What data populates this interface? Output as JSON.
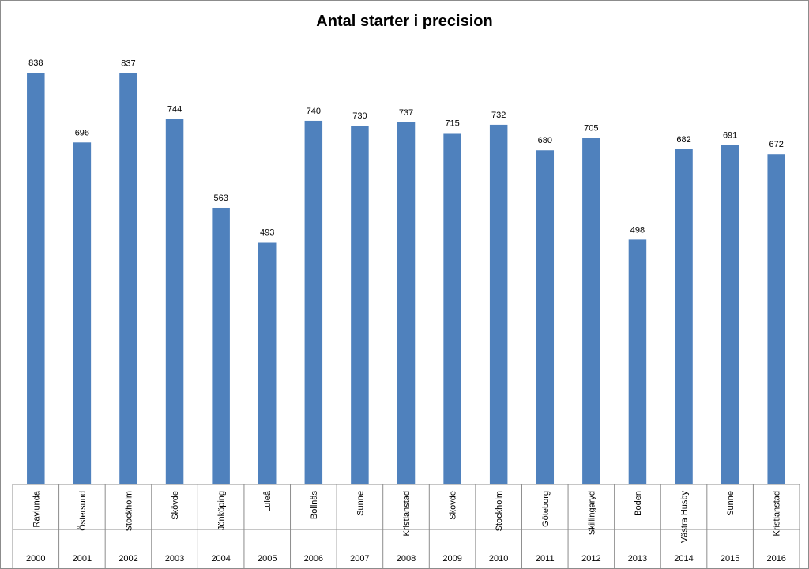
{
  "chart_data": {
    "type": "bar",
    "title": "Antal starter i precision",
    "xlabel": "",
    "ylabel": "",
    "ylim": [
      0,
      900
    ],
    "grid": false,
    "legend": "none",
    "bar_color": "#4f81bd",
    "categories": [
      {
        "year": "2000",
        "city": "Ravlunda"
      },
      {
        "year": "2001",
        "city": "Östersund"
      },
      {
        "year": "2002",
        "city": "Stockholm"
      },
      {
        "year": "2003",
        "city": "Skövde"
      },
      {
        "year": "2004",
        "city": "Jönköping"
      },
      {
        "year": "2005",
        "city": "Luleå"
      },
      {
        "year": "2006",
        "city": "Bollnäs"
      },
      {
        "year": "2007",
        "city": "Sunne"
      },
      {
        "year": "2008",
        "city": "Kristianstad"
      },
      {
        "year": "2009",
        "city": "Skövde"
      },
      {
        "year": "2010",
        "city": "Stockholm"
      },
      {
        "year": "2011",
        "city": "Göteborg"
      },
      {
        "year": "2012",
        "city": "Skillingaryd"
      },
      {
        "year": "2013",
        "city": "Boden"
      },
      {
        "year": "2014",
        "city": "Västra Husby"
      },
      {
        "year": "2015",
        "city": "Sunne"
      },
      {
        "year": "2016",
        "city": "Kristianstad"
      }
    ],
    "values": [
      838,
      696,
      837,
      744,
      563,
      493,
      740,
      730,
      737,
      715,
      732,
      680,
      705,
      498,
      682,
      691,
      672
    ]
  }
}
